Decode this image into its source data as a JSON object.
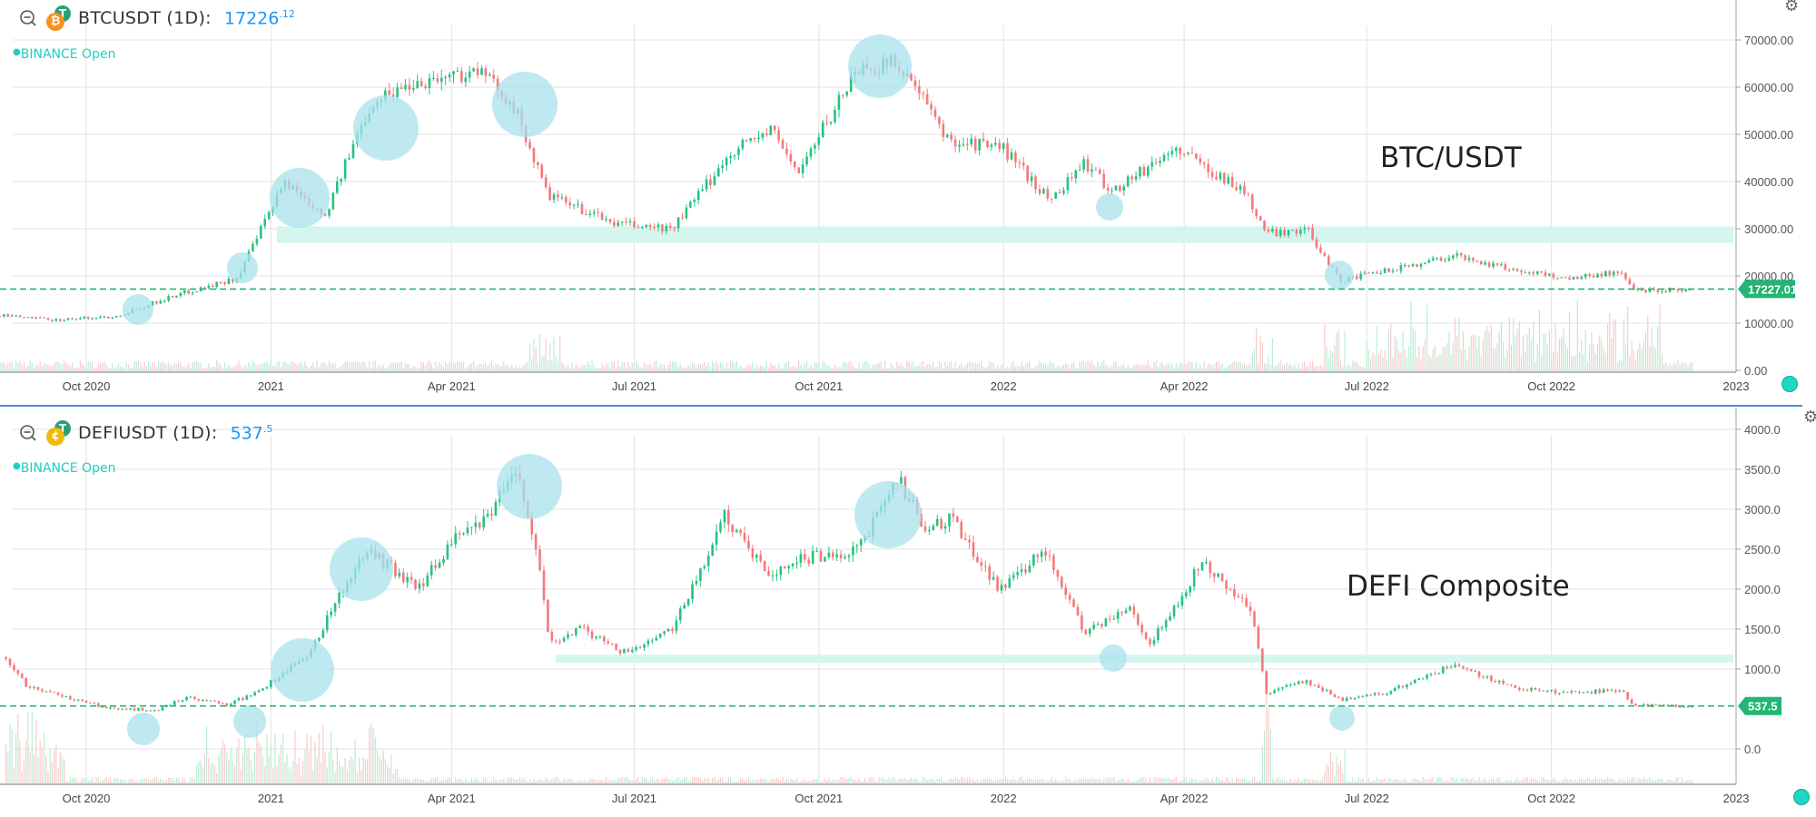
{
  "top": {
    "symbol": "BTCUSDT (1D):",
    "price_main": "17226",
    "price_frac": ".12",
    "status": "BINANCE Open",
    "annotation": "BTC/USDT",
    "last_price_label": "17227.01",
    "coin_back": "T",
    "coin_front": "₿",
    "coin_front_color": "#f7931a"
  },
  "bottom": {
    "symbol": "DEFIUSDT (1D):",
    "price_main": "537",
    "price_frac": ".5",
    "status": "BINANCE Open",
    "annotation": "DEFI Composite",
    "last_price_label": "537.5",
    "coin_back": "T",
    "coin_front": "¢",
    "coin_front_color": "#f0b90b"
  },
  "icons": {
    "zoom_out": "zoom-out-icon",
    "settings": "gear-icon"
  },
  "colors": {
    "up": "#26c281",
    "down": "#f47a7a",
    "band": "#d5f5ef",
    "circle": "#a9e2ec",
    "last_price": "#22b573",
    "price_blue": "#2196f3",
    "status": "#1bd1c4"
  },
  "chart_data": [
    {
      "type": "candlestick",
      "title": "BTCUSDT (1D)",
      "annotation": "BTC/USDT",
      "x_tick_labels": [
        "Oct 2020",
        "2021",
        "Apr 2021",
        "Jul 2021",
        "Oct 2021",
        "2022",
        "Apr 2022",
        "Jul 2022",
        "Oct 2022",
        "2023"
      ],
      "y_tick_labels": [
        "0.00",
        "10000.00",
        "20000.00",
        "30000.00",
        "40000.00",
        "50000.00",
        "60000.00",
        "70000.00"
      ],
      "ylim": [
        0,
        70000
      ],
      "last_price": 17227.01,
      "support_band": [
        27000,
        30500
      ],
      "x": [
        "2020-08-15",
        "2020-09-15",
        "2020-10-15",
        "2020-11-15",
        "2020-12-15",
        "2021-01-08",
        "2021-01-28",
        "2021-02-20",
        "2021-03-13",
        "2021-04-14",
        "2021-05-01",
        "2021-05-19",
        "2021-06-22",
        "2021-07-20",
        "2021-08-20",
        "2021-09-07",
        "2021-09-21",
        "2021-10-20",
        "2021-11-10",
        "2021-12-04",
        "2022-01-01",
        "2022-01-24",
        "2022-02-10",
        "2022-02-24",
        "2022-03-28",
        "2022-05-01",
        "2022-05-12",
        "2022-06-01",
        "2022-06-18",
        "2022-07-10",
        "2022-08-13",
        "2022-09-10",
        "2022-10-10",
        "2022-11-05",
        "2022-11-10",
        "2022-12-10"
      ],
      "close": [
        11800,
        10700,
        11400,
        16000,
        19500,
        40000,
        33000,
        57000,
        61000,
        63500,
        57000,
        37000,
        31000,
        30000,
        47000,
        51000,
        42000,
        64000,
        65000,
        49000,
        47000,
        36000,
        44000,
        38000,
        47000,
        38000,
        29000,
        30000,
        19000,
        21000,
        24400,
        21500,
        19500,
        21000,
        17000,
        17200
      ],
      "volume_note": "volume histogram along bottom, spikes near 2021-05 and 2022-11",
      "circle_markers": [
        "2020-11",
        "2020-12",
        "2021-01",
        "2021-02",
        "2021-05",
        "2021-11",
        "2022-03",
        "2022-06"
      ]
    },
    {
      "type": "candlestick",
      "title": "DEFIUSDT (1D)",
      "annotation": "DEFI Composite",
      "x_tick_labels": [
        "Oct 2020",
        "2021",
        "Apr 2021",
        "Jul 2021",
        "Oct 2021",
        "2022",
        "Apr 2022",
        "Jul 2022",
        "Oct 2022",
        "2023"
      ],
      "y_tick_labels": [
        "0.0",
        "1000.0",
        "1500.0",
        "2000.0",
        "2500.0",
        "3000.0",
        "3500.0",
        "4000.0"
      ],
      "ylim": [
        -200,
        4200
      ],
      "last_price": 537.5,
      "support_band": [
        1080,
        1180
      ],
      "x": [
        "2020-08-22",
        "2020-09-01",
        "2020-09-20",
        "2020-10-10",
        "2020-11-05",
        "2020-11-20",
        "2020-12-10",
        "2020-12-25",
        "2021-01-20",
        "2021-02-10",
        "2021-02-20",
        "2021-03-15",
        "2021-04-05",
        "2021-04-16",
        "2021-05-04",
        "2021-05-15",
        "2021-05-20",
        "2021-06-05",
        "2021-06-25",
        "2021-07-20",
        "2021-08-15",
        "2021-09-07",
        "2021-09-25",
        "2021-10-20",
        "2021-11-10",
        "2021-11-25",
        "2021-12-05",
        "2021-12-30",
        "2022-01-22",
        "2022-02-10",
        "2022-03-05",
        "2022-03-15",
        "2022-03-30",
        "2022-04-10",
        "2022-05-05",
        "2022-05-12",
        "2022-06-01",
        "2022-06-18",
        "2022-07-10",
        "2022-08-13",
        "2022-09-15",
        "2022-10-15",
        "2022-11-05",
        "2022-11-10",
        "2022-12-10"
      ],
      "close": [
        1150,
        800,
        650,
        520,
        480,
        650,
        560,
        700,
        1200,
        2200,
        2450,
        2000,
        2700,
        2800,
        3500,
        2300,
        1300,
        1500,
        1200,
        1500,
        2900,
        2200,
        2400,
        2500,
        3350,
        2700,
        2900,
        2000,
        2500,
        1450,
        1800,
        1300,
        1900,
        2350,
        1700,
        700,
        850,
        620,
        700,
        1050,
        750,
        700,
        750,
        550,
        540
      ],
      "volume_note": "volume histogram along bottom, large spikes early period and 2022-05",
      "circle_markers": [
        "2020-11",
        "2020-12",
        "2021-01",
        "2021-02",
        "2021-05",
        "2021-11",
        "2022-03",
        "2022-06"
      ]
    }
  ]
}
